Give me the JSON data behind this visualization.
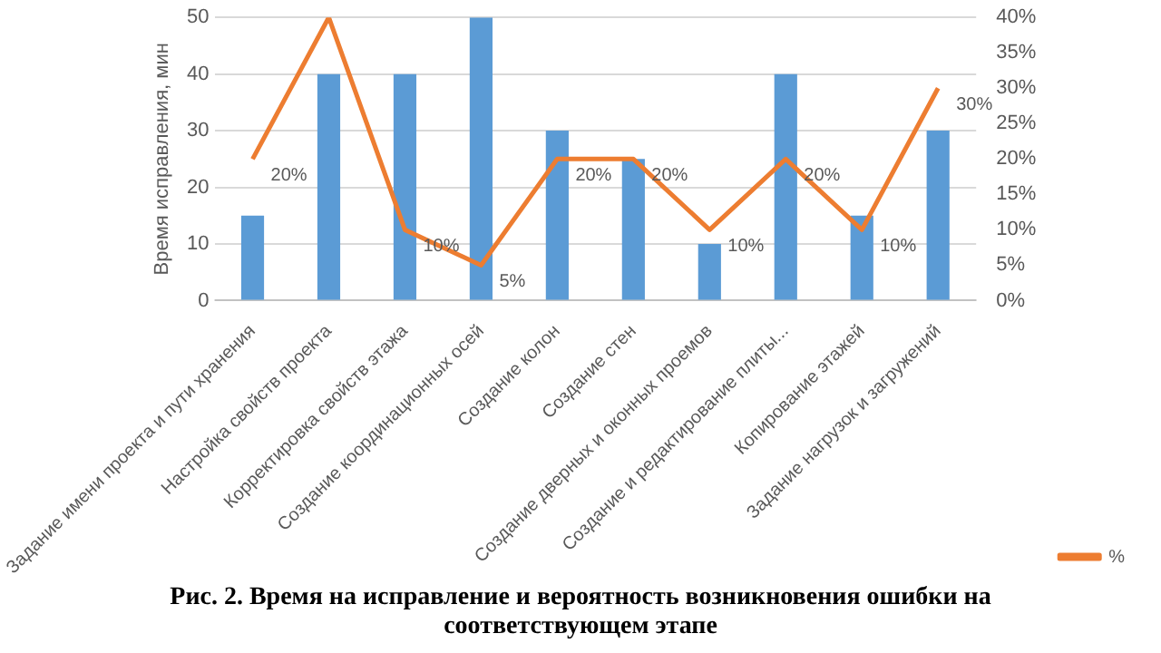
{
  "chart_data": {
    "type": "bar",
    "ylabel": "Время исправления, мин",
    "categories": [
      "Задание имени проекта и пути хранения",
      "Настройка свойств проекта",
      "Корректировка свойств этажа",
      "Создание координационных осей",
      "Создание колон",
      "Создание стен",
      "Создание дверных и оконных проемов",
      "Создание и редактирование плиты...",
      "Копирование этажей",
      "Задание нагрузок и загружений"
    ],
    "series": [
      {
        "color": "#5b9bd5",
        "values": [
          15,
          40,
          40,
          50,
          30,
          25,
          10,
          40,
          15,
          30
        ]
      },
      {
        "type": "line",
        "name": "%",
        "color": "#ed7d31",
        "axis": "y2",
        "values": [
          20,
          40,
          10,
          5,
          20,
          20,
          10,
          20,
          10,
          30
        ],
        "value_labels": [
          "20%",
          null,
          "10%",
          "5%",
          "20%",
          "20%",
          "10%",
          "20%",
          "10%",
          "30%"
        ]
      }
    ],
    "ylim": [
      0,
      50
    ],
    "yticks": [
      0,
      10,
      20,
      30,
      40,
      50
    ],
    "y2lim": [
      0,
      40
    ],
    "y2ticks": [
      {
        "value": 0,
        "label": "0%"
      },
      {
        "value": 5,
        "label": "5%"
      },
      {
        "value": 10,
        "label": "10%"
      },
      {
        "value": 15,
        "label": "15%"
      },
      {
        "value": 20,
        "label": "20%"
      },
      {
        "value": 25,
        "label": "25%"
      },
      {
        "value": 30,
        "label": "30%"
      },
      {
        "value": 35,
        "label": "35%"
      },
      {
        "value": 40,
        "label": "40%"
      }
    ],
    "grid": "y",
    "legend": "right",
    "marker": "none",
    "annotations": [
      "Рис. 2. Время на исправление и вероятность возникновения ошибки на соответствующем этапе"
    ]
  }
}
